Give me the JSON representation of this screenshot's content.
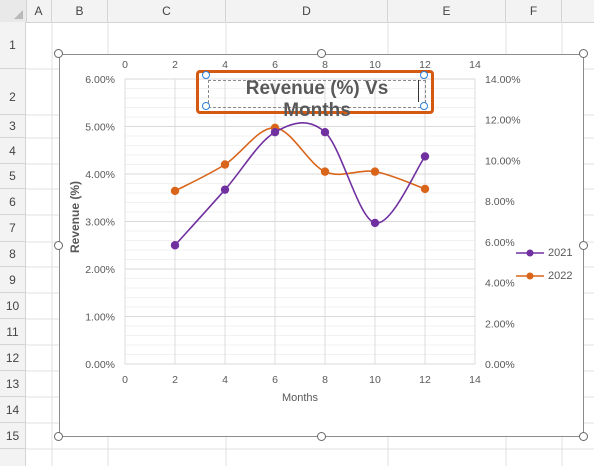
{
  "columns": [
    "A",
    "B",
    "C",
    "D",
    "E",
    "F"
  ],
  "rows": [
    "1",
    "2",
    "3",
    "4",
    "5",
    "6",
    "7",
    "8",
    "9",
    "10",
    "11",
    "12",
    "13",
    "14",
    "15"
  ],
  "chart": {
    "title": "Revenue (%) Vs Months",
    "xlabel": "Months",
    "ylabel": "Revenue (%)",
    "primary_y_ticks": [
      "6.00%",
      "5.00%",
      "4.00%",
      "3.00%",
      "2.00%",
      "1.00%",
      "0.00%"
    ],
    "secondary_y_ticks": [
      "14.00%",
      "12.00%",
      "10.00%",
      "8.00%",
      "6.00%",
      "4.00%",
      "2.00%",
      "0.00%"
    ],
    "x_ticks": [
      "0",
      "2",
      "4",
      "6",
      "8",
      "10",
      "12",
      "14"
    ],
    "legend": [
      "2021",
      "2022"
    ],
    "colors": {
      "2021": "#7030a0",
      "2022": "#d9651a",
      "grid": "#d9d9d9"
    }
  },
  "chart_data": {
    "type": "scatter",
    "title": "Revenue (%) Vs Months",
    "xlabel": "Months",
    "ylabel": "Revenue (%)",
    "xlim": [
      0,
      14
    ],
    "ylim": [
      0,
      6
    ],
    "y2lim": [
      0,
      14
    ],
    "legend_position": "right",
    "series": [
      {
        "name": "2021",
        "axis": "primary",
        "x": [
          2,
          4,
          6,
          8,
          10,
          12
        ],
        "y": [
          2.5,
          3.67,
          4.88,
          4.88,
          2.97,
          4.37
        ]
      },
      {
        "name": "2022",
        "axis": "secondary",
        "x": [
          2,
          4,
          6,
          8,
          10,
          12
        ],
        "y": [
          8.5,
          9.8,
          11.6,
          9.45,
          9.45,
          8.6
        ]
      }
    ]
  }
}
